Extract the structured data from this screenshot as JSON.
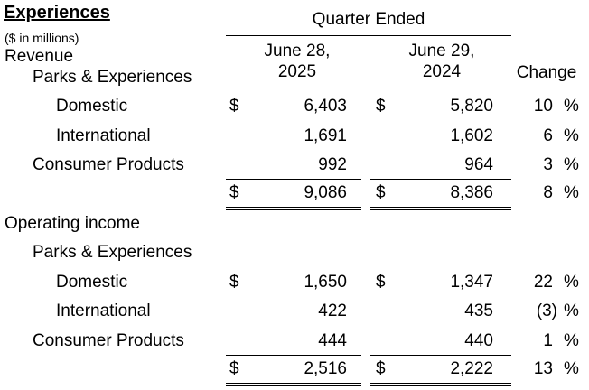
{
  "title": "Experiences",
  "subtitle": "($ in millions)",
  "period_header": "Quarter Ended",
  "columns": {
    "current": {
      "line1": "June 28,",
      "line2": "2025"
    },
    "prior": {
      "line1": "June 29,",
      "line2": "2024"
    },
    "change": "Change"
  },
  "currency_symbol": "$",
  "percent_symbol": "%",
  "revenue": {
    "heading": "Revenue",
    "subheading": "Parks & Experiences",
    "rows": [
      {
        "label": "Domestic",
        "current": "6,403",
        "prior": "5,820",
        "change": "10"
      },
      {
        "label": "International",
        "current": "1,691",
        "prior": "1,602",
        "change": "6"
      },
      {
        "label": "Consumer Products",
        "current": "992",
        "prior": "964",
        "change": "3"
      }
    ],
    "total": {
      "current": "9,086",
      "prior": "8,386",
      "change": "8"
    }
  },
  "operating_income": {
    "heading": "Operating income",
    "subheading": "Parks & Experiences",
    "rows": [
      {
        "label": "Domestic",
        "current": "1,650",
        "prior": "1,347",
        "change": "22"
      },
      {
        "label": "International",
        "current": "422",
        "prior": "435",
        "change": "(3)"
      },
      {
        "label": "Consumer Products",
        "current": "444",
        "prior": "440",
        "change": "1"
      }
    ],
    "total": {
      "current": "2,516",
      "prior": "2,222",
      "change": "13"
    }
  }
}
